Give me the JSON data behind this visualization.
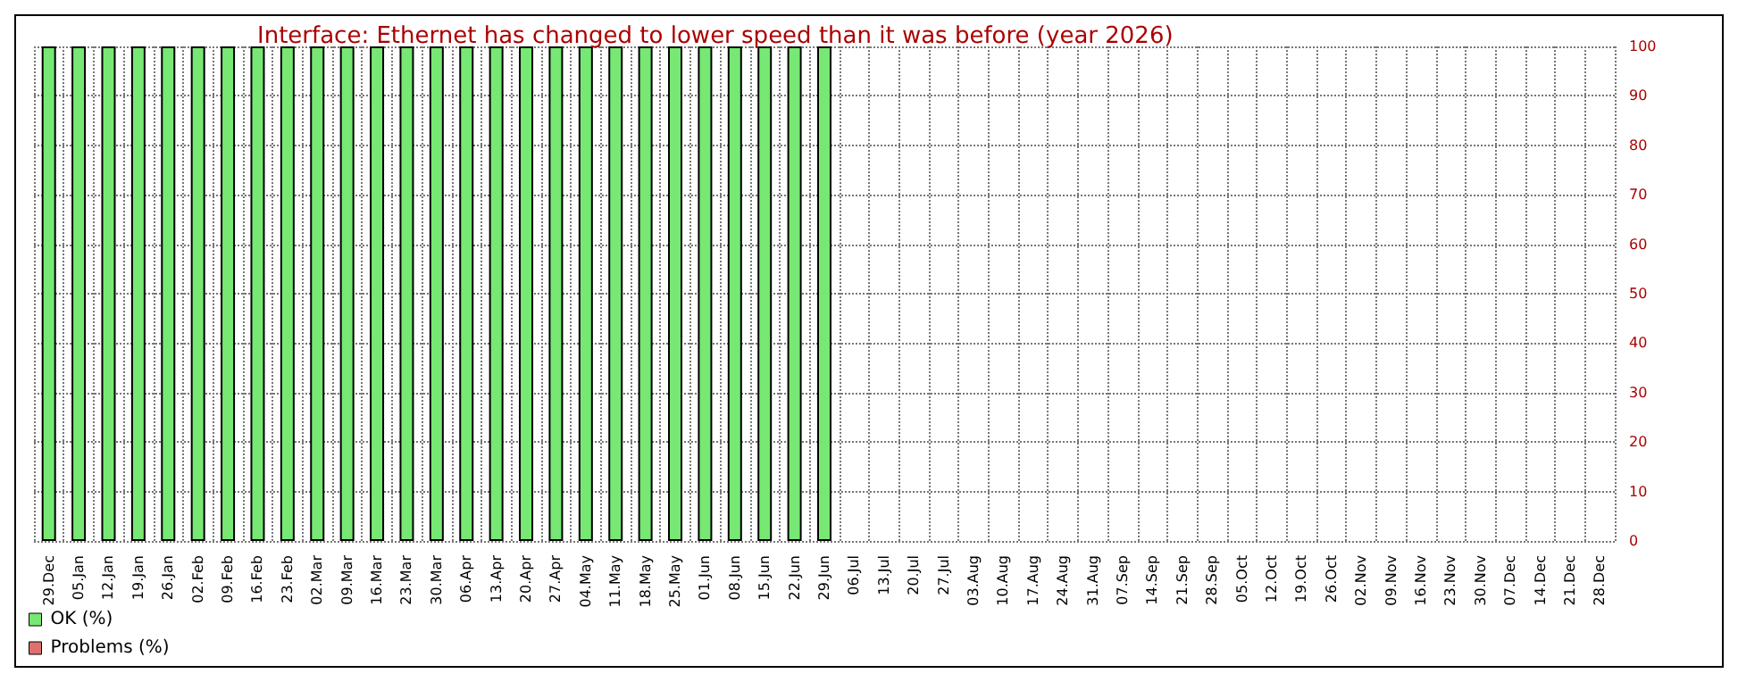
{
  "chart_data": {
    "type": "bar",
    "title": "Interface: Ethernet has changed to lower speed than it was before (year 2026)",
    "categories": [
      "29.Dec",
      "05.Jan",
      "12.Jan",
      "19.Jan",
      "26.Jan",
      "02.Feb",
      "09.Feb",
      "16.Feb",
      "23.Feb",
      "02.Mar",
      "09.Mar",
      "16.Mar",
      "23.Mar",
      "30.Mar",
      "06.Apr",
      "13.Apr",
      "20.Apr",
      "27.Apr",
      "04.May",
      "11.May",
      "18.May",
      "25.May",
      "01.Jun",
      "08.Jun",
      "15.Jun",
      "22.Jun",
      "29.Jun",
      "06.Jul",
      "13.Jul",
      "20.Jul",
      "27.Jul",
      "03.Aug",
      "10.Aug",
      "17.Aug",
      "24.Aug",
      "31.Aug",
      "07.Sep",
      "14.Sep",
      "21.Sep",
      "28.Sep",
      "05.Oct",
      "12.Oct",
      "19.Oct",
      "26.Oct",
      "02.Nov",
      "09.Nov",
      "16.Nov",
      "23.Nov",
      "30.Nov",
      "07.Dec",
      "14.Dec",
      "21.Dec",
      "28.Dec"
    ],
    "series": [
      {
        "name": "OK (%)",
        "color": "#77e873",
        "values": [
          100,
          100,
          100,
          100,
          100,
          100,
          100,
          100,
          100,
          100,
          100,
          100,
          100,
          100,
          100,
          100,
          100,
          100,
          100,
          100,
          100,
          100,
          100,
          100,
          100,
          100,
          100,
          null,
          null,
          null,
          null,
          null,
          null,
          null,
          null,
          null,
          null,
          null,
          null,
          null,
          null,
          null,
          null,
          null,
          null,
          null,
          null,
          null,
          null,
          null,
          null,
          null,
          null
        ]
      },
      {
        "name": "Problems (%)",
        "color": "#e07070",
        "values": [
          0,
          0,
          0,
          0,
          0,
          0,
          0,
          0,
          0,
          0,
          0,
          0,
          0,
          0,
          0,
          0,
          0,
          0,
          0,
          0,
          0,
          0,
          0,
          0,
          0,
          0,
          0,
          null,
          null,
          null,
          null,
          null,
          null,
          null,
          null,
          null,
          null,
          null,
          null,
          null,
          null,
          null,
          null,
          null,
          null,
          null,
          null,
          null,
          null,
          null,
          null,
          null,
          null
        ]
      }
    ],
    "stacked": true,
    "ylim": [
      0,
      100
    ],
    "yticks": [
      0,
      10,
      20,
      30,
      40,
      50,
      60,
      70,
      80,
      90,
      100
    ],
    "grid": true,
    "legend": "bottom left"
  }
}
